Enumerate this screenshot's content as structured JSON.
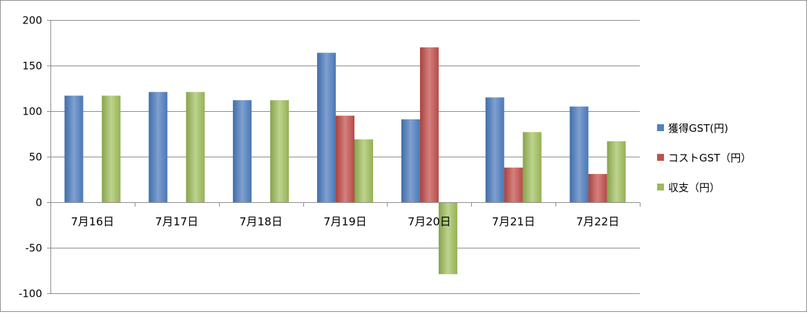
{
  "chart_data": {
    "type": "bar",
    "categories": [
      "7月16日",
      "7月17日",
      "7月18日",
      "7月19日",
      "7月20日",
      "7月21日",
      "7月22日"
    ],
    "series": [
      {
        "name": "獲得GST(円)",
        "color": "#4f81bd",
        "values": [
          117,
          121,
          112,
          164,
          91,
          115,
          105
        ]
      },
      {
        "name": "コストGST（円）",
        "color": "#c0504d",
        "values": [
          0,
          0,
          0,
          95,
          170,
          38,
          31
        ]
      },
      {
        "name": "収支（円）",
        "color": "#9bbb59",
        "values": [
          117,
          121,
          112,
          69,
          -79,
          77,
          67
        ]
      }
    ],
    "ylim": [
      -100,
      200
    ],
    "yticks": [
      -100,
      -50,
      0,
      50,
      100,
      150,
      200
    ],
    "grid": true,
    "legend_position": "right",
    "title": "",
    "xlabel": "",
    "ylabel": ""
  }
}
